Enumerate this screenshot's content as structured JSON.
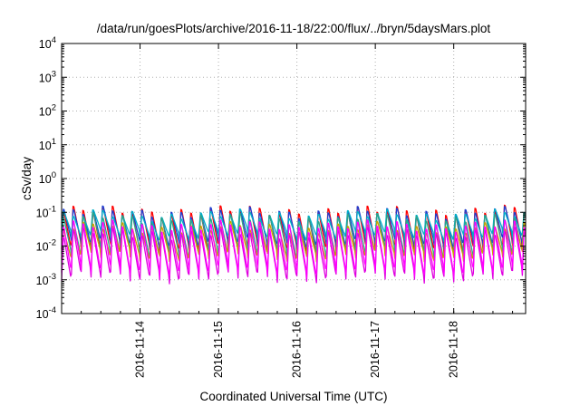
{
  "chart_data": {
    "type": "line",
    "title": "/data/run/goesPlots/archive/2016-11-18/22:00/flux/../bryn/5daysMars.plot",
    "xlabel": "Coordinated Universal Time (UTC)",
    "ylabel": "cSv/day",
    "y_scale": "log",
    "ylim": [
      0.0001,
      10000
    ],
    "y_ticks": [
      {
        "value": 0.0001,
        "base": "10",
        "exp": "-4"
      },
      {
        "value": 0.001,
        "base": "10",
        "exp": "-3"
      },
      {
        "value": 0.01,
        "base": "10",
        "exp": "-2"
      },
      {
        "value": 0.1,
        "base": "10",
        "exp": "-1"
      },
      {
        "value": 1,
        "base": "10",
        "exp": "0"
      },
      {
        "value": 10,
        "base": "10",
        "exp": "1"
      },
      {
        "value": 100,
        "base": "10",
        "exp": "2"
      },
      {
        "value": 1000,
        "base": "10",
        "exp": "3"
      },
      {
        "value": 10000,
        "base": "10",
        "exp": "4"
      }
    ],
    "xlim": [
      "2016-11-13T00:00",
      "2016-11-18T22:00"
    ],
    "x_ticks": [
      "2016-11-14",
      "2016-11-15",
      "2016-11-16",
      "2016-11-17",
      "2016-11-18"
    ],
    "grid": true,
    "cycle_hours": 3.0,
    "series": [
      {
        "color": "#ff0000",
        "peak": 0.13,
        "trough": 0.008
      },
      {
        "color": "#1f3fd0",
        "peak": 0.115,
        "trough": 0.012
      },
      {
        "color": "#00b0c8",
        "peak": 0.09,
        "trough": 0.02
      },
      {
        "color": "#2aa58a",
        "peak": 0.075,
        "trough": 0.006
      },
      {
        "color": "#c8a000",
        "peak": 0.04,
        "trough": 0.005
      },
      {
        "color": "#e000e0",
        "peak": 0.03,
        "trough": 0.0012
      },
      {
        "color": "#ff00ff",
        "peak": 0.05,
        "trough": 0.0018
      }
    ]
  }
}
